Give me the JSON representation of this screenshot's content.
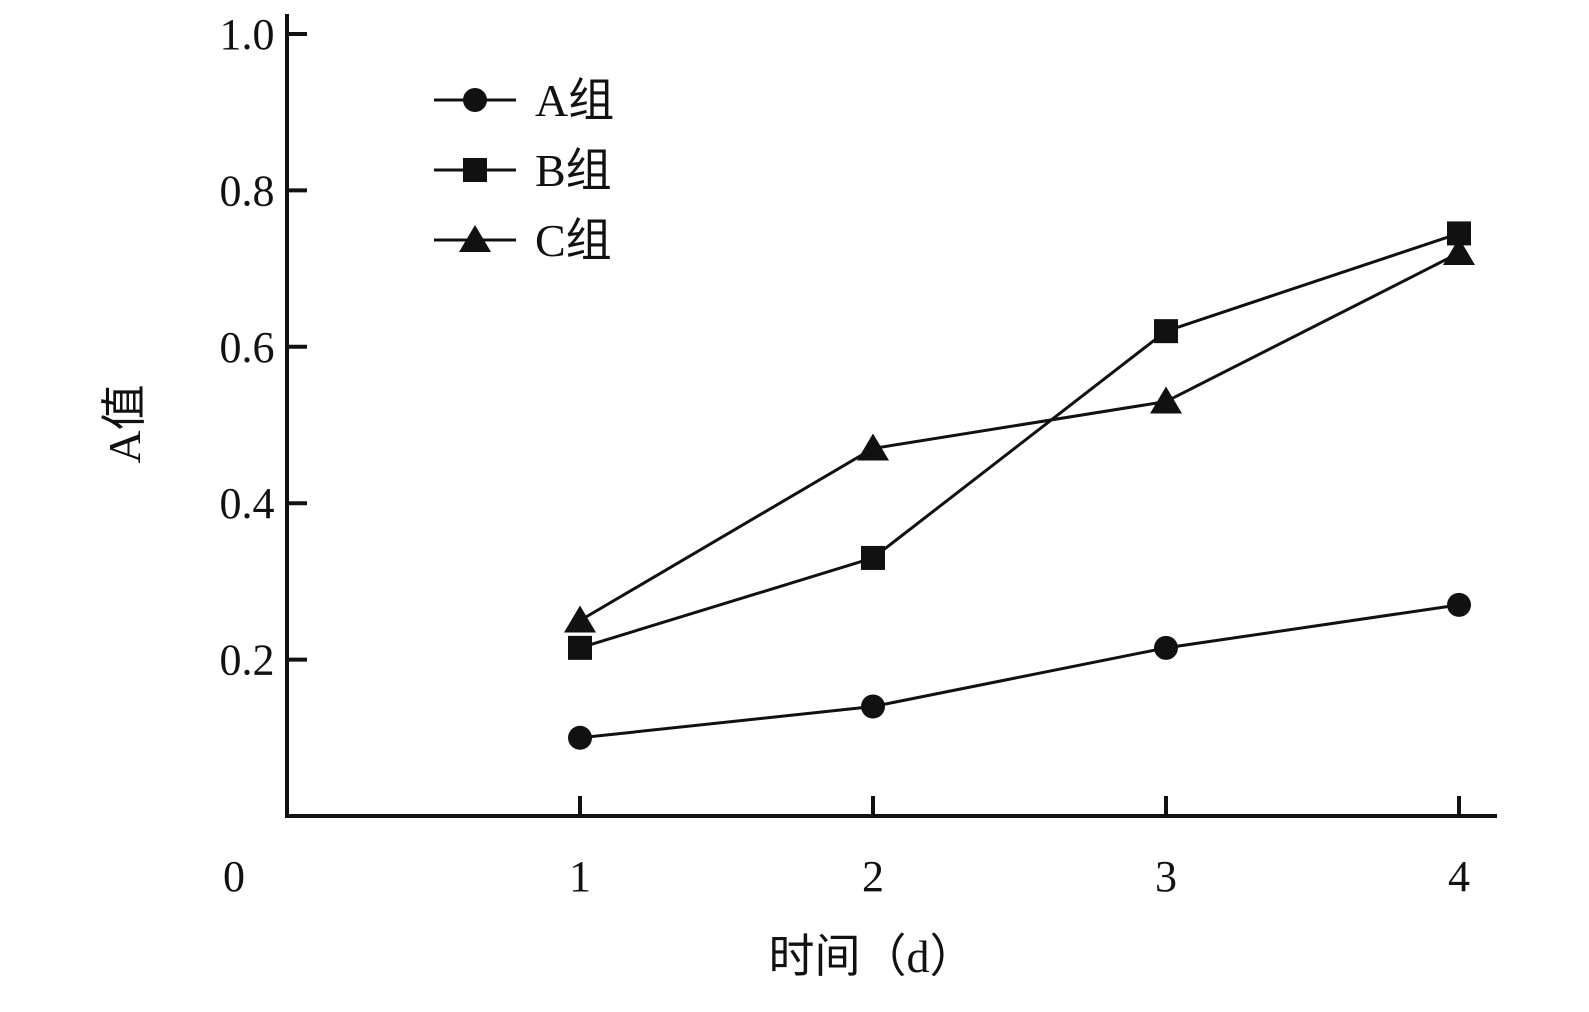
{
  "chart_data": {
    "type": "line",
    "xlabel": "时间（d）",
    "ylabel": "A值",
    "x": [
      1,
      2,
      3,
      4
    ],
    "x_ticks": [
      "1",
      "2",
      "3",
      "4"
    ],
    "xlim": [
      0,
      4.12
    ],
    "origin_label": "0",
    "y_ticks": [
      "0.2",
      "0.4",
      "0.6",
      "0.8",
      "1.0"
    ],
    "ylim": [
      0,
      1.03
    ],
    "grid": false,
    "legend_position": "top-left",
    "series": [
      {
        "name": "A组",
        "marker": "circle",
        "values": [
          0.1,
          0.14,
          0.215,
          0.27
        ]
      },
      {
        "name": "B组",
        "marker": "square",
        "values": [
          0.215,
          0.33,
          0.62,
          0.745
        ]
      },
      {
        "name": "C组",
        "marker": "triangle",
        "values": [
          0.25,
          0.47,
          0.53,
          0.72
        ]
      }
    ],
    "colors": {
      "ink": "#111111"
    }
  }
}
